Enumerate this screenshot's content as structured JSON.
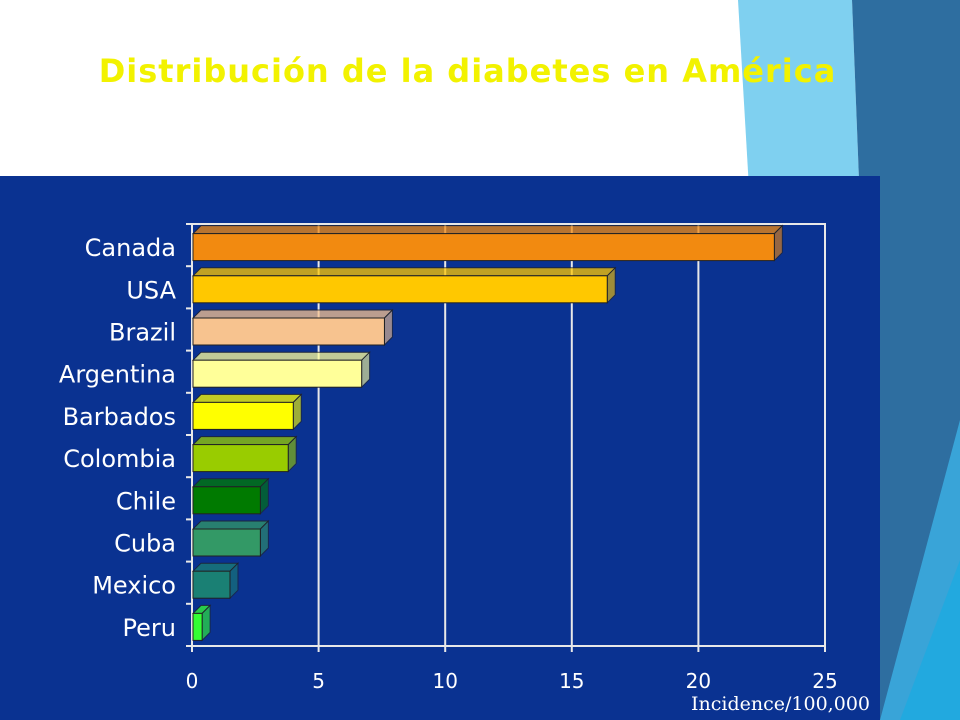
{
  "slide": {
    "title": "Distribución de la diabetes en América"
  },
  "chart_data": {
    "type": "bar",
    "orientation": "horizontal",
    "categories": [
      "Canada",
      "USA",
      "Brazil",
      "Argentina",
      "Barbados",
      "Colombia",
      "Chile",
      "Cuba",
      "Mexico",
      "Peru"
    ],
    "values": [
      23,
      16.4,
      7.6,
      6.7,
      4,
      3.8,
      2.7,
      2.7,
      1.5,
      0.4
    ],
    "colors": [
      "#f28a10",
      "#ffc800",
      "#f7c38f",
      "#ffff99",
      "#ffff00",
      "#99cc00",
      "#007a00",
      "#339966",
      "#1a8074",
      "#33ff33"
    ],
    "xlabel": "Incidence/100,000",
    "ylabel": "",
    "xlim": [
      0,
      25
    ],
    "xticks": [
      "0",
      "5",
      "10",
      "15",
      "20",
      "25"
    ],
    "grid": true,
    "plot_background": "#0a3291",
    "legend": "none"
  },
  "theme": {
    "title_color": "#f2f200",
    "accent_blue_dark": "#2b6ea3",
    "accent_blue_light": "#66c6ee"
  }
}
